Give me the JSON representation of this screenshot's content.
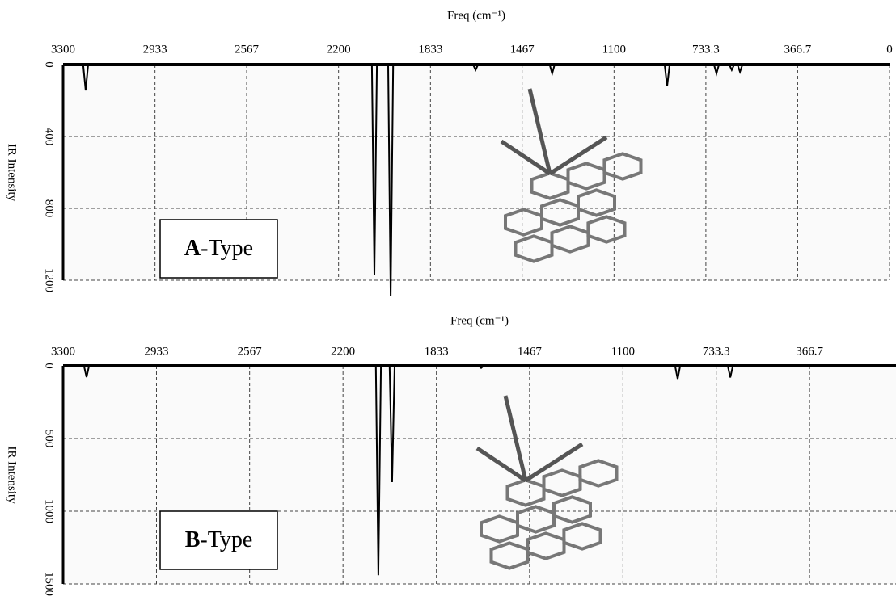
{
  "chart_data": [
    {
      "type": "line",
      "x_label": "Freq (cm⁻¹)",
      "y_label": "IR Intensity",
      "annotation": "A-Type",
      "xlim": [
        3300,
        0
      ],
      "xticks": [
        3300,
        2933,
        2567,
        2200,
        1833,
        1467,
        1100,
        733.3,
        366.7,
        0
      ],
      "ylim": [
        0,
        1200
      ],
      "yticks": [
        0,
        400,
        800,
        1200
      ],
      "y_inverted": true,
      "grid": true,
      "color": "#000000",
      "x": [
        3300,
        3220,
        3210,
        3200,
        2067,
        2057,
        2047,
        2002,
        1992,
        1982,
        1663,
        1653,
        1643,
        1357,
        1347,
        1337,
        898,
        888,
        878,
        701,
        691,
        681,
        640,
        630,
        620,
        607,
        597,
        587,
        0
      ],
      "values": [
        0,
        0,
        144,
        0,
        0,
        1170,
        0,
        0,
        1290,
        0,
        0,
        30,
        0,
        0,
        50,
        0,
        0,
        120,
        0,
        0,
        50,
        0,
        0,
        30,
        0,
        0,
        40,
        0,
        0
      ]
    },
    {
      "type": "line",
      "x_label": "Freq (cm⁻¹)",
      "y_label": "IR Intensity",
      "annotation": "B-Type",
      "xlim": [
        3300,
        27
      ],
      "xticks": [
        3300,
        2933,
        2567,
        2200,
        1833,
        1467,
        1100,
        733.3,
        366.7
      ],
      "ylim": [
        0,
        1500
      ],
      "yticks": [
        0,
        500,
        1000,
        1500
      ],
      "y_inverted": true,
      "grid": true,
      "color": "#000000",
      "x": [
        3300,
        3218,
        3208,
        3198,
        2071,
        2061,
        2051,
        2017,
        2007,
        1997,
        1667,
        1657,
        1647,
        895,
        885,
        875,
        688,
        678,
        668,
        27
      ],
      "values": [
        0,
        0,
        78,
        0,
        0,
        1440,
        0,
        0,
        800,
        0,
        0,
        15,
        0,
        0,
        90,
        0,
        0,
        80,
        0,
        0
      ]
    }
  ]
}
